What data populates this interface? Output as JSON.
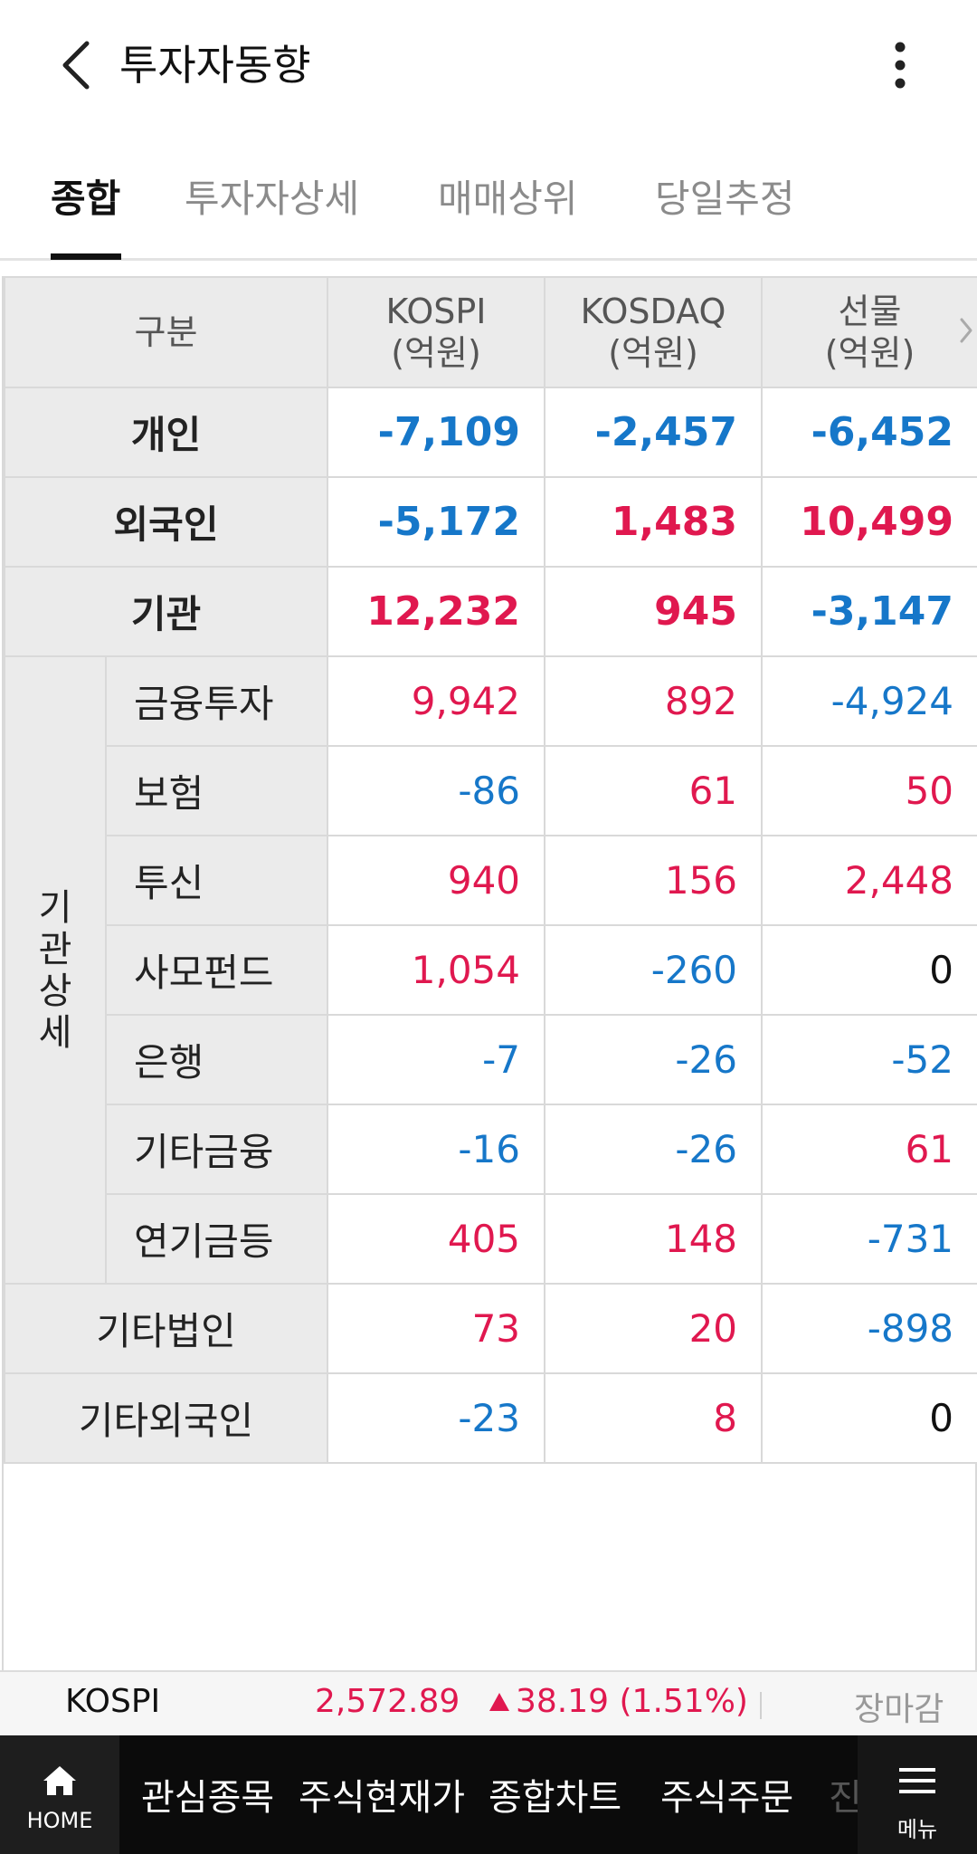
{
  "header": {
    "title": "투자자동향",
    "back_icon": "chevron-left-icon",
    "more_icon": "more-vertical-icon"
  },
  "tabs": [
    {
      "label": "종합",
      "active": true
    },
    {
      "label": "투자자상세",
      "active": false
    },
    {
      "label": "매매상위",
      "active": false
    },
    {
      "label": "당일추정",
      "active": false
    }
  ],
  "table": {
    "headers": {
      "category": "구분",
      "kospi_line1": "KOSPI",
      "kospi_line2": "(억원)",
      "kosdaq_line1": "KOSDAQ",
      "kosdaq_line2": "(억원)",
      "futures_line1": "선물",
      "futures_line2": "(억원)"
    },
    "detail_group_label": [
      "기",
      "관",
      "상",
      "세"
    ],
    "rows": [
      {
        "label": "개인",
        "kospi": "-7,109",
        "kosdaq": "-2,457",
        "futures": "-6,452"
      },
      {
        "label": "외국인",
        "kospi": "-5,172",
        "kosdaq": "1,483",
        "futures": "10,499"
      },
      {
        "label": "기관",
        "kospi": "12,232",
        "kosdaq": "945",
        "futures": "-3,147"
      },
      {
        "label": "금융투자",
        "kospi": "9,942",
        "kosdaq": "892",
        "futures": "-4,924"
      },
      {
        "label": "보험",
        "kospi": "-86",
        "kosdaq": "61",
        "futures": "50"
      },
      {
        "label": "투신",
        "kospi": "940",
        "kosdaq": "156",
        "futures": "2,448"
      },
      {
        "label": "사모펀드",
        "kospi": "1,054",
        "kosdaq": "-260",
        "futures": "0"
      },
      {
        "label": "은행",
        "kospi": "-7",
        "kosdaq": "-26",
        "futures": "-52"
      },
      {
        "label": "기타금융",
        "kospi": "-16",
        "kosdaq": "-26",
        "futures": "61"
      },
      {
        "label": "연기금등",
        "kospi": "405",
        "kosdaq": "148",
        "futures": "-731"
      },
      {
        "label": "기타법인",
        "kospi": "73",
        "kosdaq": "20",
        "futures": "-898"
      },
      {
        "label": "기타외국인",
        "kospi": "-23",
        "kosdaq": "8",
        "futures": "0"
      }
    ]
  },
  "ticker": {
    "name": "KOSPI",
    "price": "2,572.89",
    "change": "38.19 (1.51%)",
    "direction": "up",
    "status": "장마감"
  },
  "bottom_nav": {
    "home_label": "HOME",
    "items": [
      "관심종목",
      "주식현재가",
      "종합차트",
      "주식주문",
      "진"
    ],
    "menu_label": "메뉴"
  },
  "colors": {
    "positive": "#e0184f",
    "negative": "#1677c9",
    "zero": "#111111"
  }
}
